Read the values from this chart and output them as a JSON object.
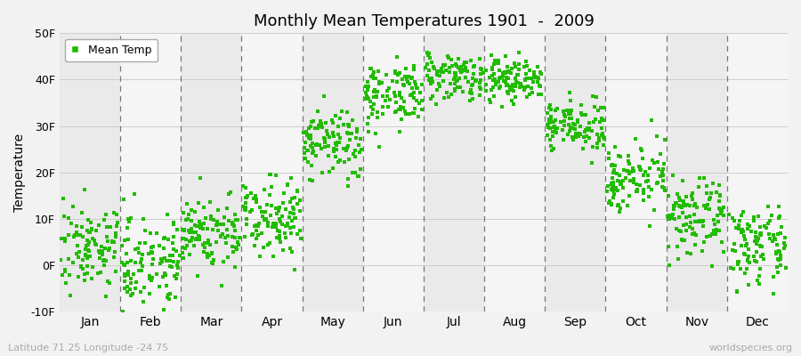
{
  "title": "Monthly Mean Temperatures 1901  -  2009",
  "ylabel": "Temperature",
  "xlabel_labels": [
    "Jan",
    "Feb",
    "Mar",
    "Apr",
    "May",
    "Jun",
    "Jul",
    "Aug",
    "Sep",
    "Oct",
    "Nov",
    "Dec"
  ],
  "ylim": [
    -10,
    50
  ],
  "yticks": [
    -10,
    0,
    10,
    20,
    30,
    40,
    50
  ],
  "ytick_labels": [
    "-10F",
    "0F",
    "10F",
    "20F",
    "30F",
    "40F",
    "50F"
  ],
  "dot_color": "#22bb00",
  "dot_size": 6,
  "bg_color": "#f2f2f2",
  "band_even": "#eaeaea",
  "band_odd": "#f5f5f5",
  "dashed_line_color": "#777777",
  "subtitle_left": "Latitude 71.25 Longitude -24.75",
  "subtitle_right": "worldspecies.org",
  "legend_label": "Mean Temp",
  "num_years": 109,
  "monthly_params": {
    "Jan": {
      "mean": 4,
      "std": 4.5
    },
    "Feb": {
      "mean": 1,
      "std": 5.0
    },
    "Mar": {
      "mean": 7,
      "std": 4.0
    },
    "Apr": {
      "mean": 11,
      "std": 4.0
    },
    "May": {
      "mean": 26,
      "std": 4.0
    },
    "Jun": {
      "mean": 37,
      "std": 3.5
    },
    "Jul": {
      "mean": 41,
      "std": 2.5
    },
    "Aug": {
      "mean": 40,
      "std": 2.5
    },
    "Sep": {
      "mean": 30,
      "std": 2.5
    },
    "Oct": {
      "mean": 19,
      "std": 3.5
    },
    "Nov": {
      "mean": 10,
      "std": 4.0
    },
    "Dec": {
      "mean": 4,
      "std": 4.0
    }
  }
}
